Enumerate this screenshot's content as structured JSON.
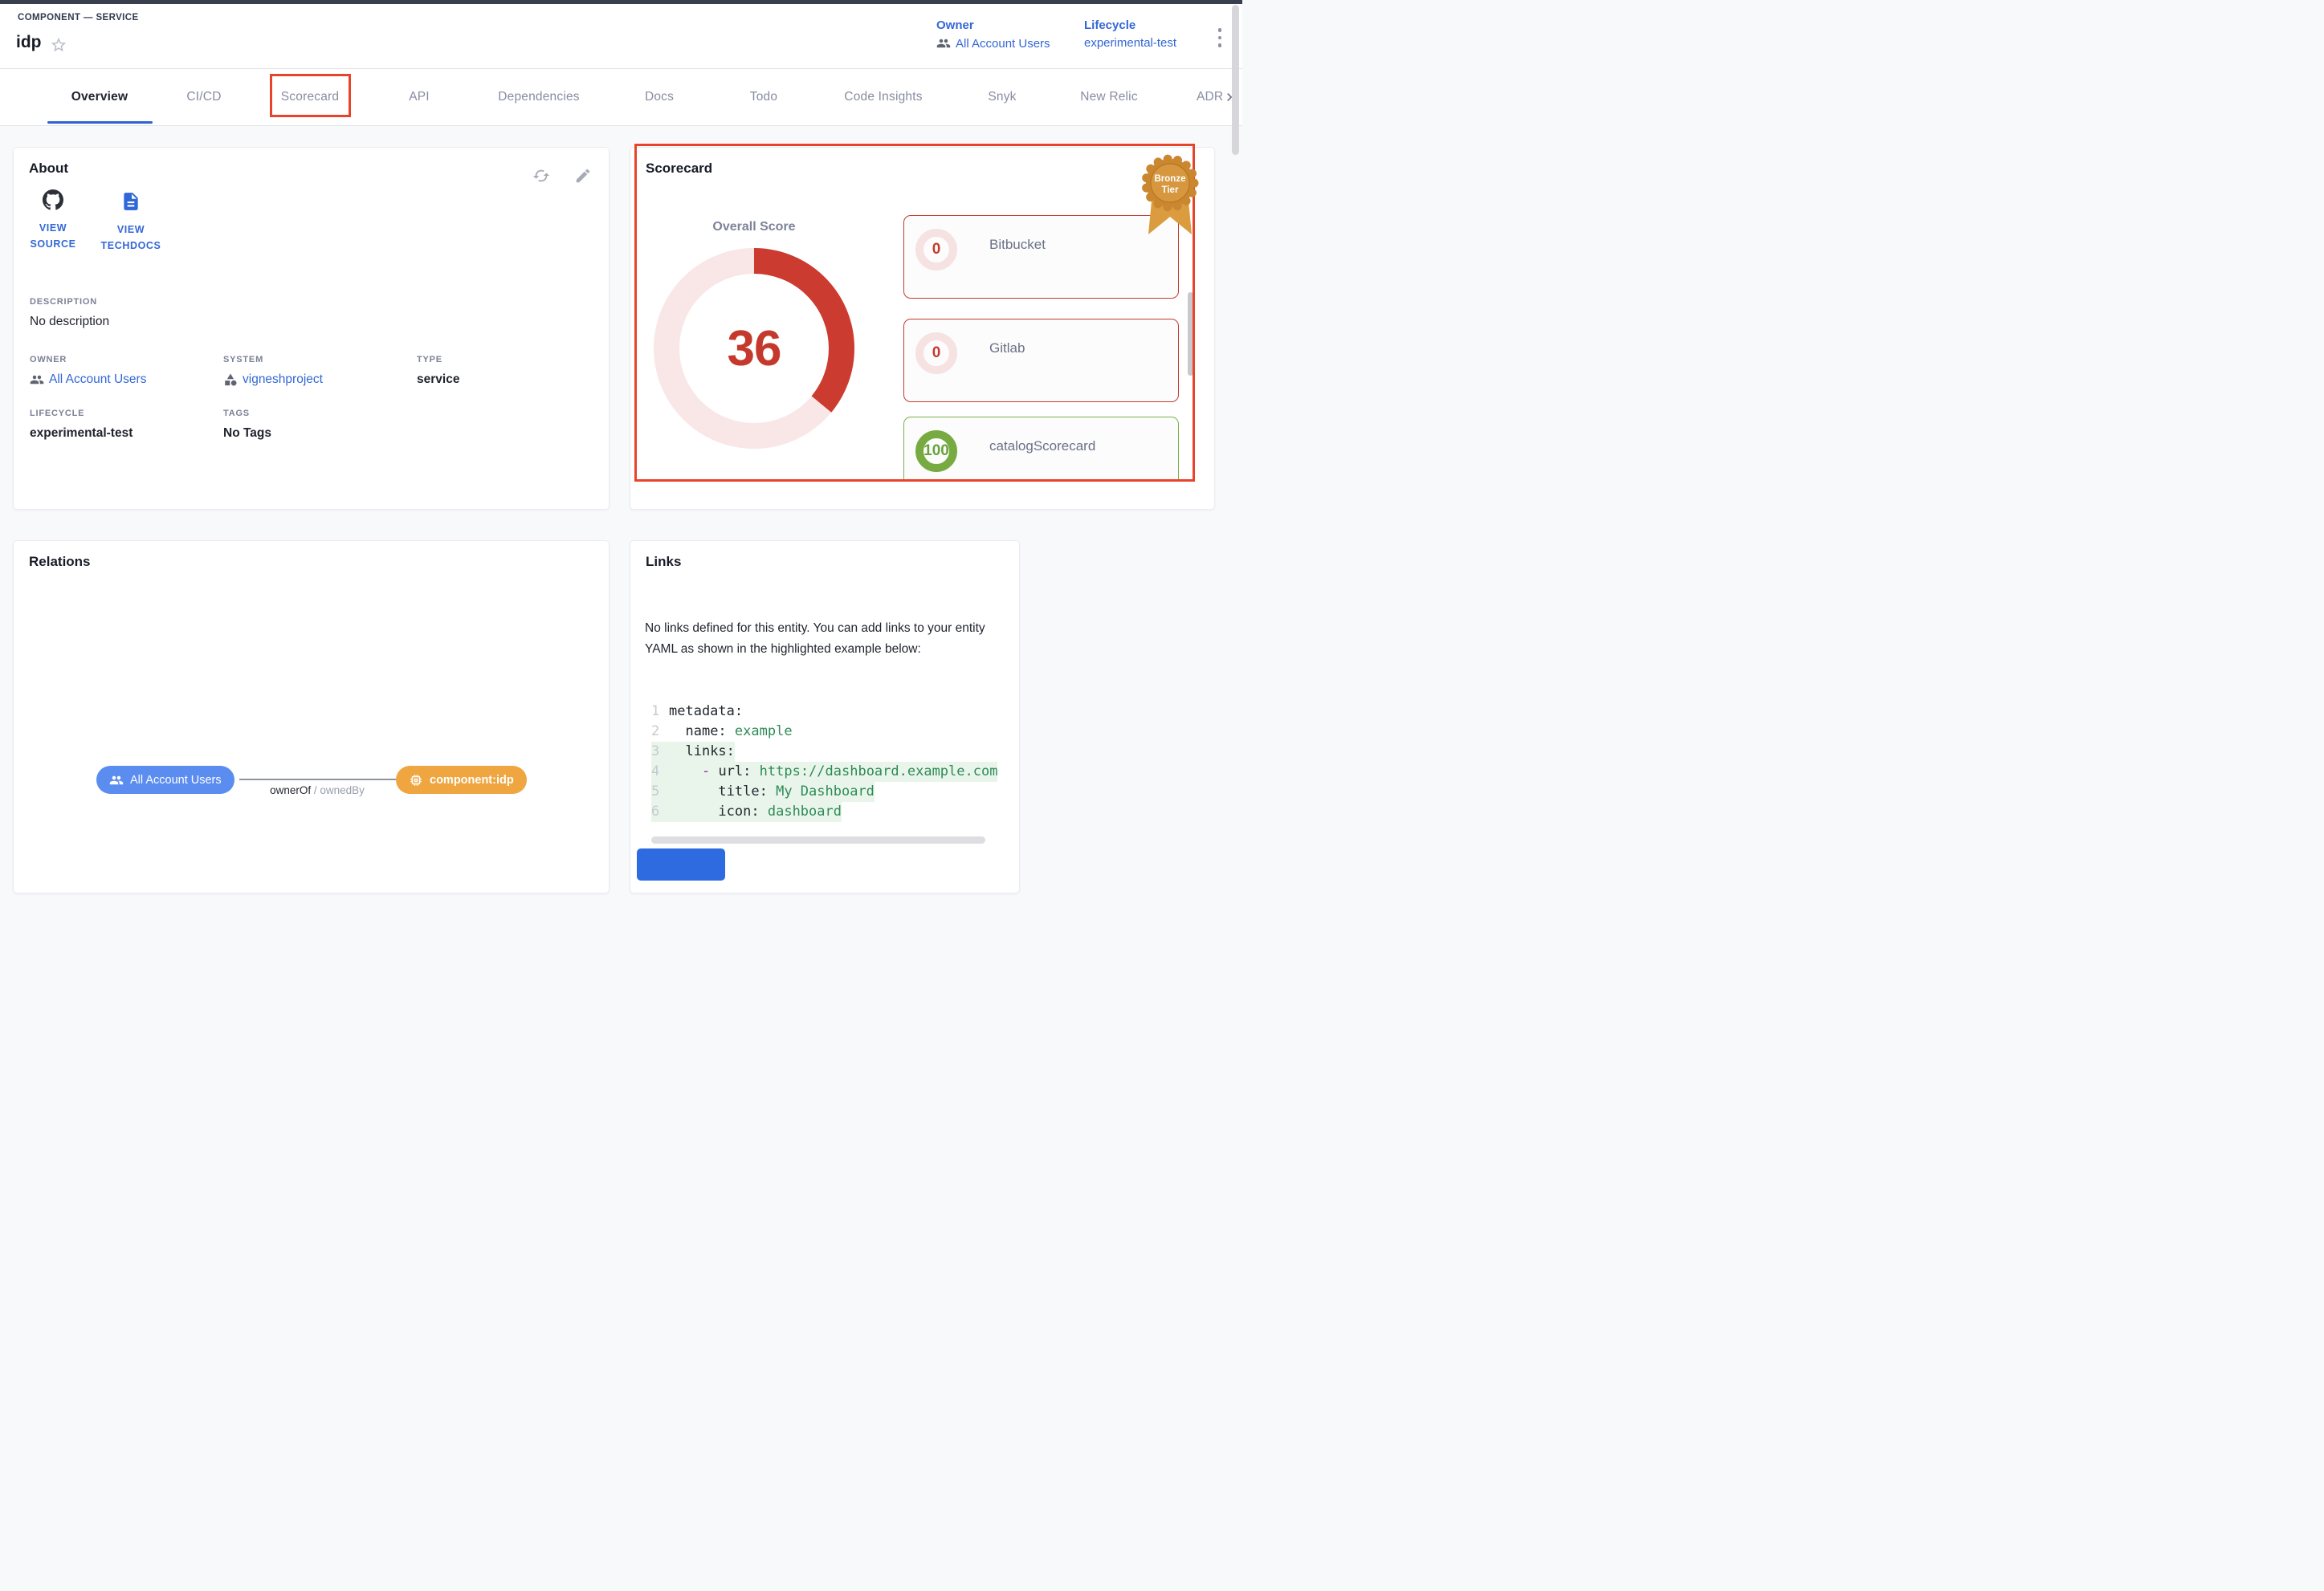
{
  "header": {
    "breadcrumb": "COMPONENT — SERVICE",
    "title": "idp",
    "owner_label": "Owner",
    "owner_value": "All Account Users",
    "lifecycle_label": "Lifecycle",
    "lifecycle_value": "experimental-test"
  },
  "tabs": {
    "items": [
      {
        "label": "Overview",
        "active": true
      },
      {
        "label": "CI/CD"
      },
      {
        "label": "Scorecard",
        "annotated": true
      },
      {
        "label": "API"
      },
      {
        "label": "Dependencies"
      },
      {
        "label": "Docs"
      },
      {
        "label": "Todo"
      },
      {
        "label": "Code Insights"
      },
      {
        "label": "Snyk"
      },
      {
        "label": "New Relic"
      },
      {
        "label": "ADRs",
        "clipped": true
      }
    ]
  },
  "about": {
    "title": "About",
    "quick_links": [
      {
        "icon": "github",
        "label": "VIEW SOURCE"
      },
      {
        "icon": "docs",
        "label": "VIEW TECHDOCS"
      }
    ],
    "description_label": "DESCRIPTION",
    "description_value": "No description",
    "owner_label": "OWNER",
    "owner_value": "All Account Users",
    "system_label": "SYSTEM",
    "system_value": "vigneshproject",
    "type_label": "TYPE",
    "type_value": "service",
    "lifecycle_label": "LIFECYCLE",
    "lifecycle_value": "experimental-test",
    "tags_label": "TAGS",
    "tags_value": "No Tags"
  },
  "scorecard": {
    "title": "Scorecard",
    "tier_badge_line1": "Bronze",
    "tier_badge_line2": "Tier",
    "overall_label": "Overall Score",
    "overall_score": 36,
    "items": [
      {
        "name": "Bitbucket",
        "score": 0,
        "status": "low"
      },
      {
        "name": "Gitlab",
        "score": 0,
        "status": "low"
      },
      {
        "name": "catalogScorecard",
        "score": 100,
        "status": "high"
      }
    ],
    "colors": {
      "gauge_red": "#cc3b30",
      "gauge_track": "#f8e7e6",
      "good_green": "#77ab41",
      "bad_red": "#c33b2e"
    }
  },
  "relations": {
    "title": "Relations",
    "owner_node": "All Account Users",
    "component_node": "component:idp",
    "edge": {
      "from_label": "ownerOf",
      "separator": " / ",
      "to_label": "ownedBy"
    }
  },
  "links": {
    "title": "Links",
    "empty_text": "No links defined for this entity. You can add links to your entity YAML as shown in the highlighted example below:",
    "code": {
      "lines": [
        {
          "n": "1",
          "hl": false,
          "tokens": [
            [
              "k",
              "metadata:"
            ]
          ]
        },
        {
          "n": "2",
          "hl": false,
          "tokens": [
            [
              "p",
              "  "
            ],
            [
              "k",
              "name:"
            ],
            [
              "p",
              " "
            ],
            [
              "v",
              "example"
            ]
          ]
        },
        {
          "n": "3",
          "hl": true,
          "tokens": [
            [
              "p",
              "  "
            ],
            [
              "k",
              "links:"
            ]
          ]
        },
        {
          "n": "4",
          "hl": true,
          "tokens": [
            [
              "p",
              "    "
            ],
            [
              "d",
              "- "
            ],
            [
              "k",
              "url:"
            ],
            [
              "p",
              " "
            ],
            [
              "v",
              "https://dashboard.example.com"
            ]
          ]
        },
        {
          "n": "5",
          "hl": true,
          "tokens": [
            [
              "p",
              "      "
            ],
            [
              "k",
              "title:"
            ],
            [
              "p",
              " "
            ],
            [
              "v",
              "My Dashboard"
            ]
          ]
        },
        {
          "n": "6",
          "hl": true,
          "tokens": [
            [
              "p",
              "      "
            ],
            [
              "k",
              "icon:"
            ],
            [
              "p",
              " "
            ],
            [
              "v",
              "dashboard"
            ]
          ]
        }
      ]
    }
  },
  "annotations": {
    "color": "#e8432b"
  }
}
